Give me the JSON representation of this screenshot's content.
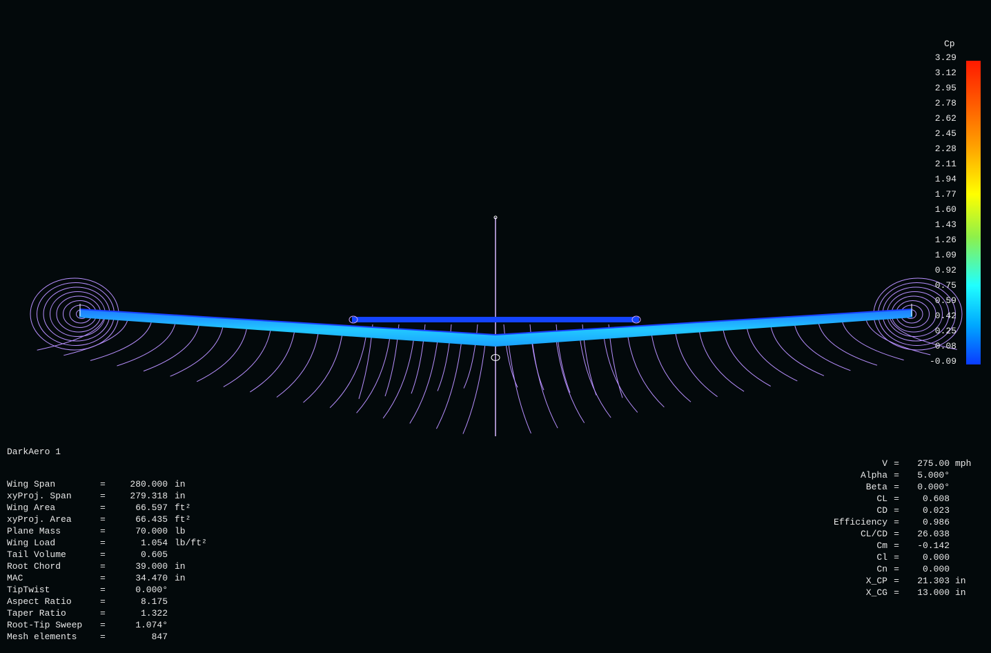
{
  "legend": {
    "title": "Cp",
    "ticks": [
      "3.29",
      "3.12",
      "2.95",
      "2.78",
      "2.62",
      "2.45",
      "2.28",
      "2.11",
      "1.94",
      "1.77",
      "1.60",
      "1.43",
      "1.26",
      "1.09",
      "0.92",
      "0.75",
      "0.59",
      "0.42",
      "0.25",
      "0.08",
      "-0.09"
    ]
  },
  "plane": {
    "name": "DarkAero 1",
    "properties": [
      {
        "label": "Wing Span",
        "value": "280.000",
        "unit": "in"
      },
      {
        "label": "xyProj. Span",
        "value": "279.318",
        "unit": "in"
      },
      {
        "label": "Wing Area",
        "value": "66.597",
        "unit": "ft²"
      },
      {
        "label": "xyProj. Area",
        "value": "66.435",
        "unit": "ft²"
      },
      {
        "label": "Plane Mass",
        "value": "70.000",
        "unit": "lb"
      },
      {
        "label": "Wing Load",
        "value": "1.054",
        "unit": "lb/ft²"
      },
      {
        "label": "Tail Volume",
        "value": "0.605",
        "unit": ""
      },
      {
        "label": "Root Chord",
        "value": "39.000",
        "unit": "in"
      },
      {
        "label": "MAC",
        "value": "34.470",
        "unit": "in"
      },
      {
        "label": "TipTwist",
        "value": "0.000°",
        "unit": ""
      },
      {
        "label": "Aspect Ratio",
        "value": "8.175",
        "unit": ""
      },
      {
        "label": "Taper Ratio",
        "value": "1.322",
        "unit": ""
      },
      {
        "label": "Root-Tip Sweep",
        "value": "1.074°",
        "unit": ""
      },
      {
        "label": "Mesh elements",
        "value": "847",
        "unit": ""
      }
    ]
  },
  "results": [
    {
      "label": "V",
      "value": "275.00",
      "unit": "mph"
    },
    {
      "label": "Alpha",
      "value": "5.000°",
      "unit": ""
    },
    {
      "label": "Beta",
      "value": "0.000°",
      "unit": ""
    },
    {
      "label": "CL",
      "value": "0.608",
      "unit": ""
    },
    {
      "label": "CD",
      "value": "0.023",
      "unit": ""
    },
    {
      "label": "Efficiency",
      "value": "0.986",
      "unit": ""
    },
    {
      "label": "CL/CD",
      "value": "26.038",
      "unit": ""
    },
    {
      "label": "Cm",
      "value": "-0.142",
      "unit": ""
    },
    {
      "label": "Cl",
      "value": "0.000",
      "unit": ""
    },
    {
      "label": "Cn",
      "value": "0.000",
      "unit": ""
    },
    {
      "label": "X_CP",
      "value": "21.303",
      "unit": "in"
    },
    {
      "label": "X_CG",
      "value": "13.000",
      "unit": "in"
    }
  ],
  "colors": {
    "background": "#03090b",
    "streamline": "#c8a0ff",
    "wing_light": "#1ec8ff",
    "wing_dark": "#1450ff"
  }
}
